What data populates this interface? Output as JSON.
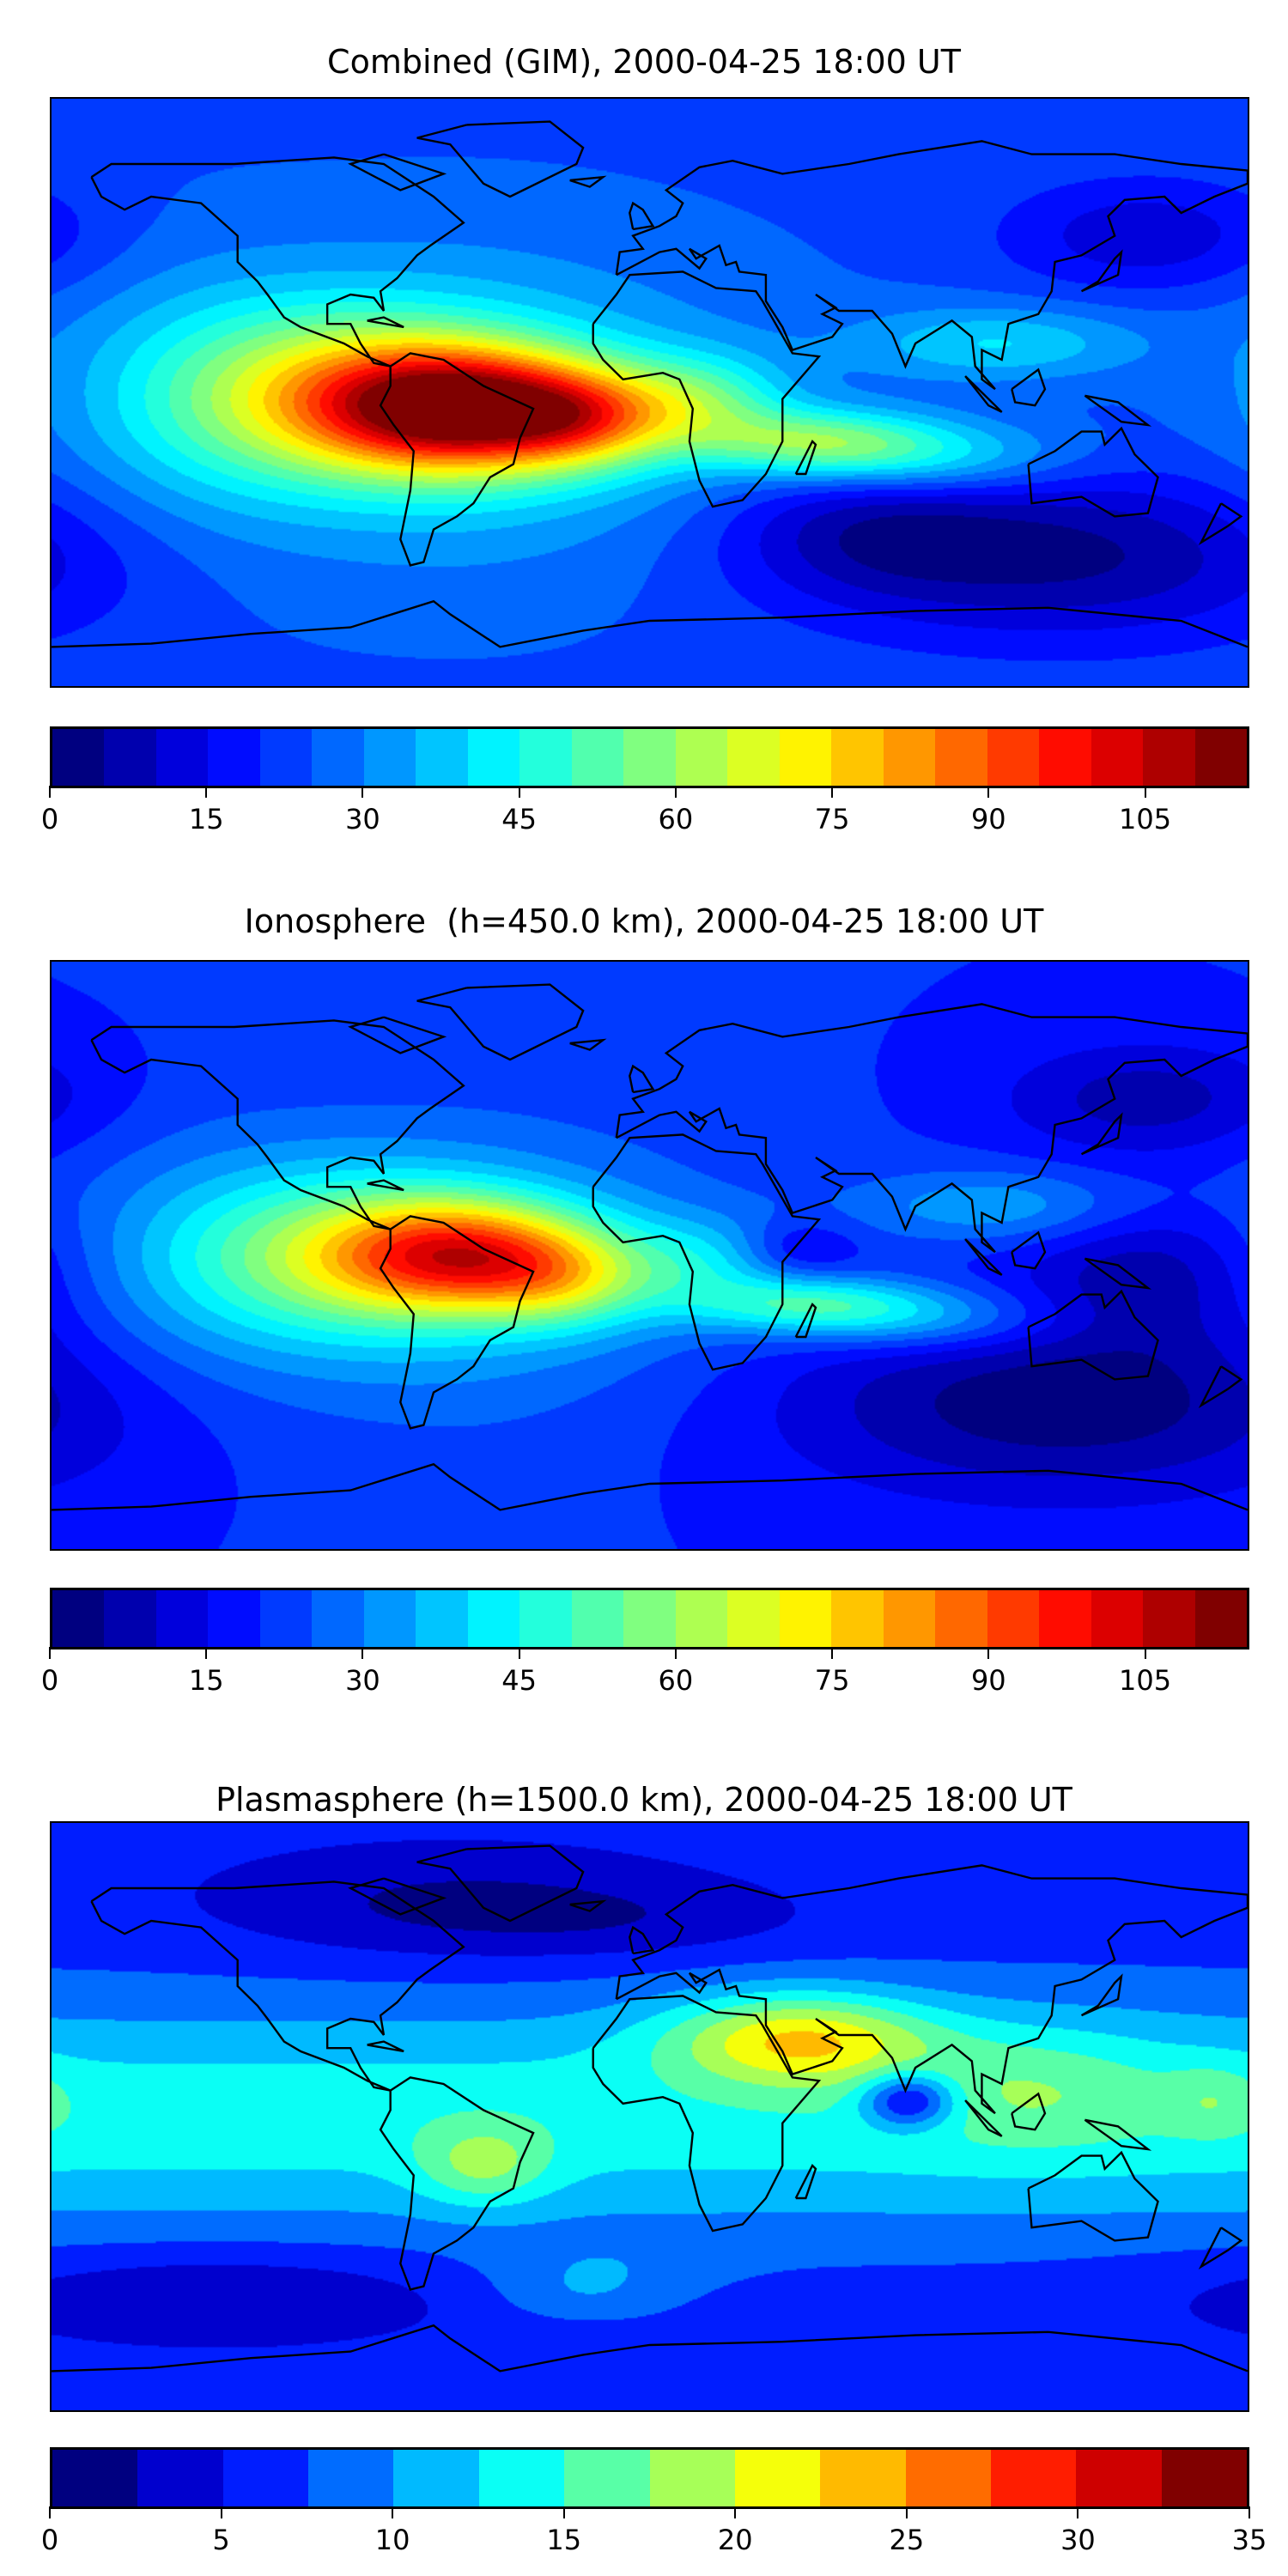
{
  "chart_data": [
    {
      "type": "heatmap",
      "title": "Combined (GIM), 2000-04-25 18:00 UT",
      "projection": "equirectangular world map with coastlines",
      "colormap": "jet",
      "levels_min": 0,
      "levels_max": 115,
      "level_step": 5,
      "colorbar_ticks": [
        "0",
        "15",
        "30",
        "45",
        "60",
        "75",
        "90",
        "105"
      ],
      "tick_values": [
        0,
        15,
        30,
        45,
        60,
        75,
        90,
        105
      ],
      "features": {
        "max_region": "South America / equatorial Atlantic (~110)",
        "min_region": "South Indian Ocean / southern Pacific (~5)"
      }
    },
    {
      "type": "heatmap",
      "title": "Ionosphere  (h=450.0 km), 2000-04-25 18:00 UT",
      "projection": "equirectangular world map with coastlines",
      "colormap": "jet",
      "levels_min": 0,
      "levels_max": 115,
      "level_step": 5,
      "colorbar_ticks": [
        "0",
        "15",
        "30",
        "45",
        "60",
        "75",
        "90",
        "105"
      ],
      "tick_values": [
        0,
        15,
        30,
        45,
        60,
        75,
        90,
        105
      ],
      "features": {
        "max_region": "Northern South America (~90)",
        "min_region": "South Indian Ocean / Pacific (~3)"
      }
    },
    {
      "type": "heatmap",
      "title": "Plasmasphere (h=1500.0 km), 2000-04-25 18:00 UT",
      "projection": "equirectangular world map with coastlines",
      "colormap": "jet",
      "levels_min": 0,
      "levels_max": 35,
      "level_step": 2.5,
      "colorbar_ticks": [
        "0",
        "5",
        "10",
        "15",
        "20",
        "25",
        "30",
        "35"
      ],
      "tick_values": [
        0,
        5,
        10,
        15,
        20,
        25,
        30,
        35
      ],
      "features": {
        "max_region": "Arabian Peninsula (~25)",
        "min_region": "Polar regions (~2)"
      }
    }
  ]
}
